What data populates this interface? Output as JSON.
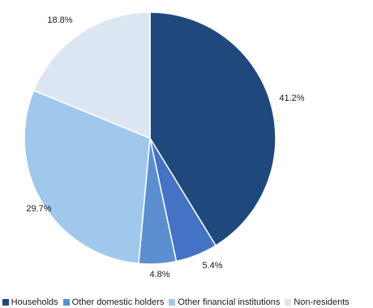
{
  "chart_data": {
    "type": "pie",
    "slices": [
      {
        "label": "Households",
        "value": 41.2,
        "value_label": "41.2%",
        "color": "#1f497d"
      },
      {
        "label": "Other domestic holders",
        "value": 5.4,
        "value_label": "5.4%",
        "color": "#4472c4"
      },
      {
        "label": "Other financial institutions",
        "value": 4.8,
        "value_label": "4.8%",
        "color": "#5b8fd0"
      },
      {
        "label": "Non-residents",
        "value": 29.7,
        "value_label": "29.7%",
        "color": "#a0c8ec"
      },
      {
        "label": "",
        "value": 18.8,
        "value_label": "18.8%",
        "color": "#dce6f2"
      }
    ],
    "legend": {
      "placement": "bottom",
      "partial_text": "ts",
      "entries": [
        {
          "label": "Households",
          "color": "#1f497d"
        },
        {
          "label": "Other domestic holders",
          "color": "#5b8fd0"
        },
        {
          "label": "Other financial institutions",
          "color": "#a0c8ec"
        },
        {
          "label": "Non-residents",
          "color": "#dce6f2"
        }
      ]
    }
  }
}
